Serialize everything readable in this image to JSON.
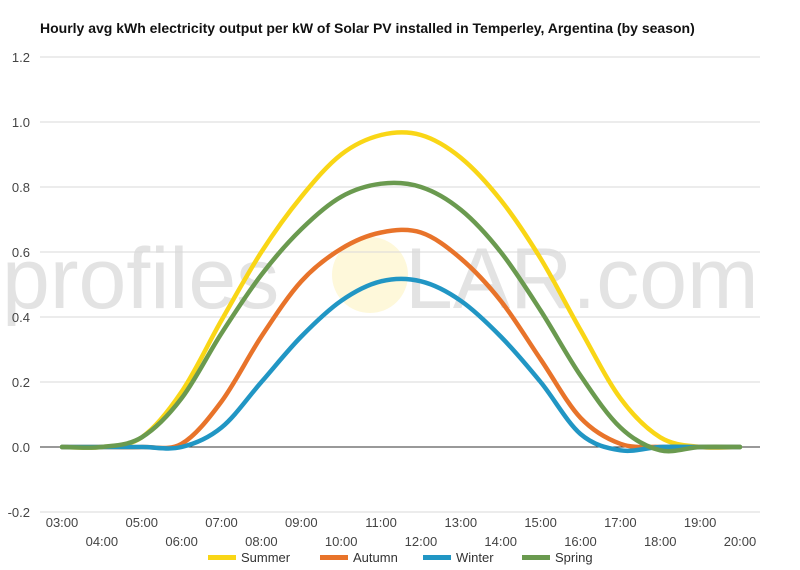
{
  "chart_data": {
    "type": "line",
    "title": "Hourly avg kWh electricity output per kW of Solar PV installed in Temperley, Argentina (by season)",
    "xlabel": "",
    "ylabel": "",
    "ylim": [
      -0.2,
      1.2
    ],
    "y_ticks": [
      "-0.2",
      "0.0",
      "0.2",
      "0.4",
      "0.6",
      "0.8",
      "1.0",
      "1.2"
    ],
    "x": [
      "03:00",
      "04:00",
      "05:00",
      "06:00",
      "07:00",
      "08:00",
      "09:00",
      "10:00",
      "11:00",
      "12:00",
      "13:00",
      "14:00",
      "15:00",
      "16:00",
      "17:00",
      "18:00",
      "19:00",
      "20:00"
    ],
    "grid": true,
    "legend_position": "bottom",
    "series": [
      {
        "name": "Summer",
        "color": "#f9d616",
        "values": [
          0.0,
          0.0,
          0.03,
          0.17,
          0.39,
          0.6,
          0.77,
          0.9,
          0.96,
          0.96,
          0.89,
          0.76,
          0.58,
          0.36,
          0.15,
          0.03,
          0.0,
          0.0
        ]
      },
      {
        "name": "Autumn",
        "color": "#e8732a",
        "values": [
          0.0,
          0.0,
          0.0,
          0.01,
          0.14,
          0.34,
          0.51,
          0.61,
          0.66,
          0.66,
          0.58,
          0.45,
          0.27,
          0.09,
          0.01,
          0.0,
          0.0,
          0.0
        ]
      },
      {
        "name": "Winter",
        "color": "#2196c4",
        "values": [
          0.0,
          0.0,
          0.0,
          0.0,
          0.06,
          0.2,
          0.34,
          0.45,
          0.51,
          0.51,
          0.45,
          0.34,
          0.2,
          0.04,
          -0.01,
          0.0,
          0.0,
          0.0
        ]
      },
      {
        "name": "Spring",
        "color": "#6a9a4f",
        "values": [
          0.0,
          0.0,
          0.03,
          0.15,
          0.35,
          0.53,
          0.67,
          0.77,
          0.81,
          0.8,
          0.73,
          0.6,
          0.42,
          0.22,
          0.06,
          -0.01,
          0.0,
          0.0
        ]
      }
    ]
  },
  "watermark": {
    "text_left": "profiles",
    "text_right": "LAR.com",
    "sun_color": "#f9d616"
  }
}
